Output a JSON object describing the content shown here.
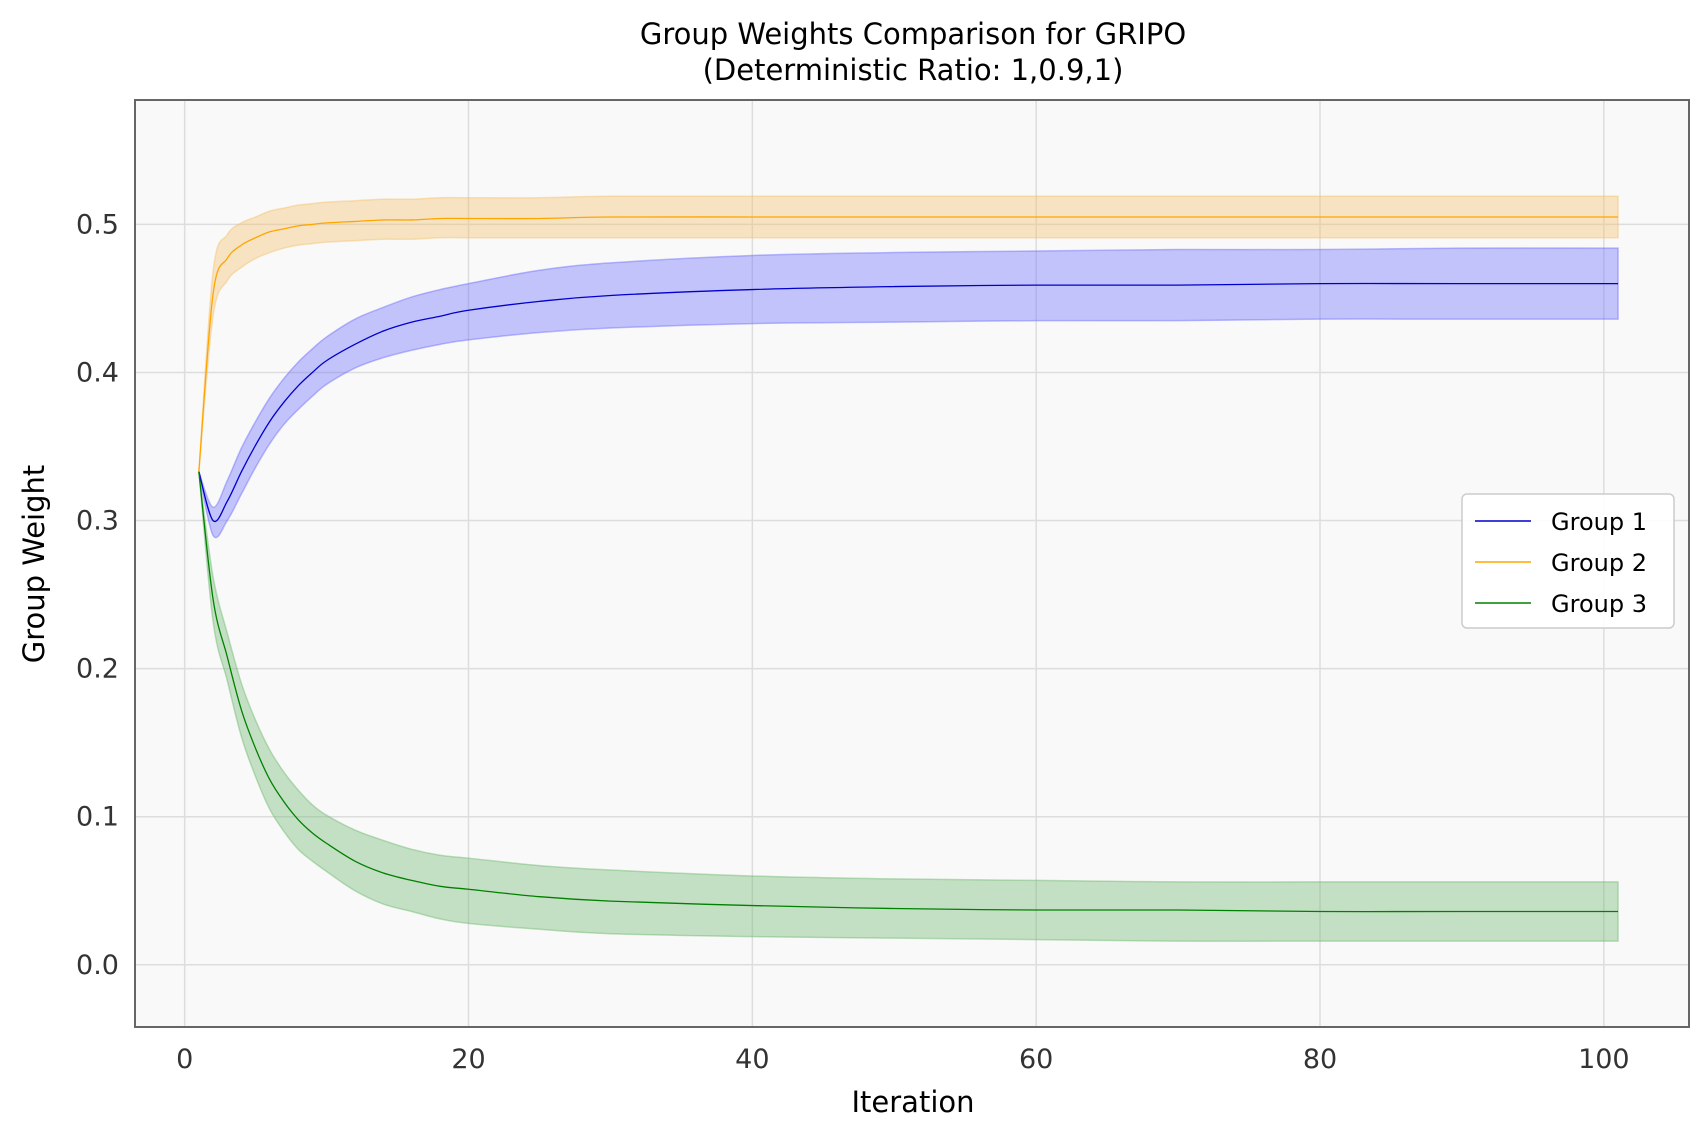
{
  "chart_data": {
    "type": "line",
    "title": "Group Weights Comparison for GRIPO",
    "subtitle": "(Deterministic Ratio: 1,0.9,1)",
    "xlabel": "Iteration",
    "ylabel": "Group Weight",
    "xlim": [
      -3.5,
      106
    ],
    "ylim": [
      -0.042,
      0.584
    ],
    "xticks": [
      0,
      20,
      40,
      60,
      80,
      100
    ],
    "yticks": [
      0.0,
      0.1,
      0.2,
      0.3,
      0.4,
      0.5
    ],
    "xtick_labels": [
      "0",
      "20",
      "40",
      "60",
      "80",
      "100"
    ],
    "ytick_labels": [
      "0.0",
      "0.1",
      "0.2",
      "0.3",
      "0.4",
      "0.5"
    ],
    "grid": true,
    "legend_position": "center-right",
    "series": [
      {
        "name": "Group 1",
        "color": "#0000cc",
        "band_color": "#6b6bff",
        "x": [
          1,
          2,
          3,
          4,
          5,
          6,
          7,
          8,
          9,
          10,
          12,
          14,
          16,
          18,
          20,
          25,
          30,
          40,
          50,
          60,
          70,
          80,
          90,
          101
        ],
        "mean": [
          0.333,
          0.3,
          0.313,
          0.333,
          0.351,
          0.367,
          0.38,
          0.391,
          0.4,
          0.408,
          0.419,
          0.428,
          0.434,
          0.438,
          0.442,
          0.448,
          0.452,
          0.456,
          0.458,
          0.459,
          0.459,
          0.46,
          0.46,
          0.46
        ],
        "upper": [
          0.333,
          0.309,
          0.327,
          0.349,
          0.367,
          0.383,
          0.396,
          0.407,
          0.416,
          0.424,
          0.436,
          0.444,
          0.451,
          0.456,
          0.46,
          0.469,
          0.474,
          0.479,
          0.481,
          0.482,
          0.483,
          0.483,
          0.484,
          0.484
        ],
        "lower": [
          0.333,
          0.29,
          0.3,
          0.318,
          0.336,
          0.352,
          0.365,
          0.375,
          0.384,
          0.392,
          0.403,
          0.41,
          0.415,
          0.419,
          0.422,
          0.427,
          0.43,
          0.433,
          0.434,
          0.435,
          0.435,
          0.436,
          0.436,
          0.436
        ]
      },
      {
        "name": "Group 2",
        "color": "#ffa500",
        "band_color": "#f5c06a",
        "x": [
          1,
          2,
          3,
          4,
          5,
          6,
          7,
          8,
          9,
          10,
          12,
          14,
          16,
          18,
          20,
          25,
          30,
          40,
          50,
          60,
          70,
          80,
          90,
          101
        ],
        "mean": [
          0.333,
          0.453,
          0.477,
          0.486,
          0.491,
          0.495,
          0.497,
          0.499,
          0.5,
          0.501,
          0.502,
          0.503,
          0.503,
          0.504,
          0.504,
          0.504,
          0.505,
          0.505,
          0.505,
          0.505,
          0.505,
          0.505,
          0.505,
          0.505
        ],
        "upper": [
          0.333,
          0.468,
          0.493,
          0.501,
          0.505,
          0.509,
          0.511,
          0.513,
          0.514,
          0.515,
          0.516,
          0.517,
          0.517,
          0.518,
          0.518,
          0.518,
          0.519,
          0.519,
          0.519,
          0.519,
          0.519,
          0.519,
          0.519,
          0.519
        ],
        "lower": [
          0.333,
          0.438,
          0.462,
          0.471,
          0.477,
          0.481,
          0.484,
          0.486,
          0.487,
          0.488,
          0.489,
          0.49,
          0.49,
          0.491,
          0.491,
          0.491,
          0.491,
          0.491,
          0.491,
          0.491,
          0.491,
          0.491,
          0.491,
          0.491
        ]
      },
      {
        "name": "Group 3",
        "color": "#008000",
        "band_color": "#6fb86f",
        "x": [
          1,
          2,
          3,
          4,
          5,
          6,
          7,
          8,
          9,
          10,
          12,
          14,
          16,
          18,
          20,
          25,
          30,
          40,
          50,
          60,
          70,
          80,
          90,
          101
        ],
        "mean": [
          0.333,
          0.247,
          0.208,
          0.172,
          0.146,
          0.125,
          0.11,
          0.098,
          0.089,
          0.082,
          0.07,
          0.062,
          0.057,
          0.053,
          0.051,
          0.046,
          0.043,
          0.04,
          0.038,
          0.037,
          0.037,
          0.036,
          0.036,
          0.036
        ],
        "upper": [
          0.333,
          0.262,
          0.224,
          0.19,
          0.165,
          0.145,
          0.13,
          0.118,
          0.108,
          0.101,
          0.091,
          0.084,
          0.078,
          0.074,
          0.072,
          0.067,
          0.064,
          0.06,
          0.058,
          0.057,
          0.056,
          0.056,
          0.056,
          0.056
        ],
        "lower": [
          0.333,
          0.232,
          0.192,
          0.154,
          0.127,
          0.105,
          0.09,
          0.078,
          0.07,
          0.063,
          0.05,
          0.041,
          0.036,
          0.031,
          0.028,
          0.024,
          0.021,
          0.019,
          0.018,
          0.017,
          0.016,
          0.016,
          0.016,
          0.016
        ]
      }
    ]
  }
}
